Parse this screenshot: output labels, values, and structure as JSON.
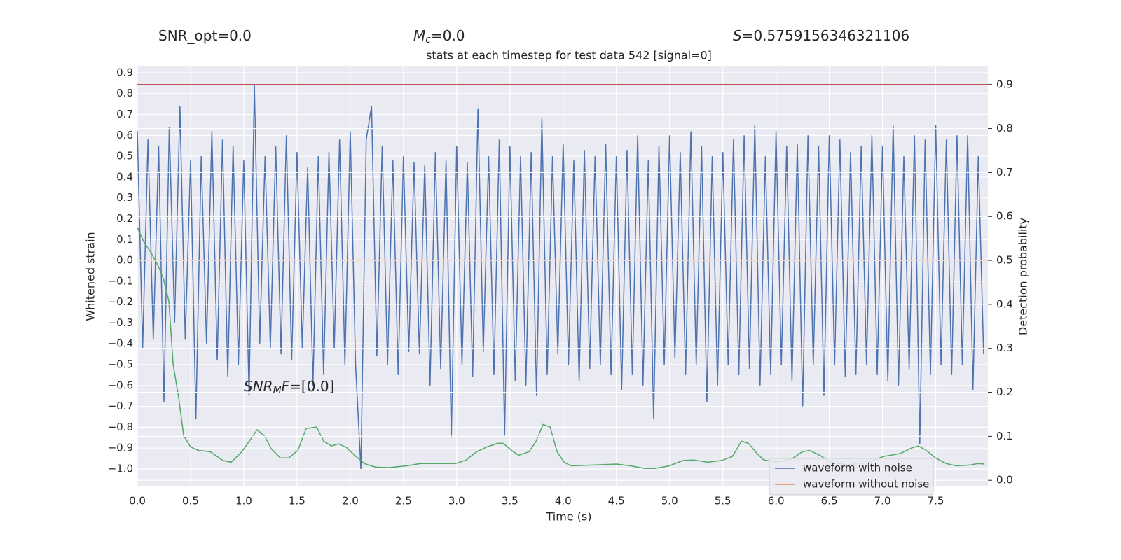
{
  "chart_data": {
    "type": "line",
    "title": "stats at each timestep for test data 542 [signal=0]",
    "header": [
      [
        {
          "text": "SNR_opt=0.0"
        }
      ],
      [
        {
          "text": "M",
          "style": "italic"
        },
        {
          "text": "c",
          "style": "sub"
        },
        {
          "text": "=0.0"
        }
      ],
      [
        {
          "text": "S",
          "style": "italic"
        },
        {
          "text": "=0.5759156346321106"
        }
      ]
    ],
    "annotation": [
      {
        "text": "SNR",
        "style": "italic"
      },
      {
        "text": "M",
        "style": "sub"
      },
      {
        "text": "F",
        "style": "italic"
      },
      {
        "text": "=[0.0]"
      }
    ],
    "xlabel": "Time (s)",
    "ylabel": "Whitened strain",
    "y2label": "Detection probability",
    "xlim": [
      0,
      7.99
    ],
    "ylim": [
      -1.084,
      0.93
    ],
    "y2lim": [
      -0.014,
      0.941
    ],
    "xticks": [
      {
        "value": 0,
        "label": "0.0"
      },
      {
        "value": 0.5,
        "label": "0.5"
      },
      {
        "value": 1,
        "label": "1.0"
      },
      {
        "value": 1.5,
        "label": "1.5"
      },
      {
        "value": 2,
        "label": "2.0"
      },
      {
        "value": 2.5,
        "label": "2.5"
      },
      {
        "value": 3,
        "label": "3.0"
      },
      {
        "value": 3.5,
        "label": "3.5"
      },
      {
        "value": 4,
        "label": "4.0"
      },
      {
        "value": 4.5,
        "label": "4.5"
      },
      {
        "value": 5,
        "label": "5.0"
      },
      {
        "value": 5.5,
        "label": "5.5"
      },
      {
        "value": 6,
        "label": "6.0"
      },
      {
        "value": 6.5,
        "label": "6.5"
      },
      {
        "value": 7,
        "label": "7.0"
      },
      {
        "value": 7.5,
        "label": "7.5"
      }
    ],
    "yticks": [
      {
        "value": -1,
        "label": "−1.0"
      },
      {
        "value": -0.9,
        "label": "−0.9"
      },
      {
        "value": -0.8,
        "label": "−0.8"
      },
      {
        "value": -0.7,
        "label": "−0.7"
      },
      {
        "value": -0.6,
        "label": "−0.6"
      },
      {
        "value": -0.5,
        "label": "−0.5"
      },
      {
        "value": -0.4,
        "label": "−0.4"
      },
      {
        "value": -0.3,
        "label": "−0.3"
      },
      {
        "value": -0.2,
        "label": "−0.2"
      },
      {
        "value": -0.1,
        "label": "−0.1"
      },
      {
        "value": 0,
        "label": "0.0"
      },
      {
        "value": 0.1,
        "label": "0.1"
      },
      {
        "value": 0.2,
        "label": "0.2"
      },
      {
        "value": 0.3,
        "label": "0.3"
      },
      {
        "value": 0.4,
        "label": "0.4"
      },
      {
        "value": 0.5,
        "label": "0.5"
      },
      {
        "value": 0.6,
        "label": "0.6"
      },
      {
        "value": 0.7,
        "label": "0.7"
      },
      {
        "value": 0.8,
        "label": "0.8"
      },
      {
        "value": 0.9,
        "label": "0.9"
      }
    ],
    "y2ticks": [
      {
        "value": 0,
        "label": "0.0"
      },
      {
        "value": 0.1,
        "label": "0.1"
      },
      {
        "value": 0.2,
        "label": "0.2"
      },
      {
        "value": 0.3,
        "label": "0.3"
      },
      {
        "value": 0.4,
        "label": "0.4"
      },
      {
        "value": 0.5,
        "label": "0.5"
      },
      {
        "value": 0.6,
        "label": "0.6"
      },
      {
        "value": 0.7,
        "label": "0.7"
      },
      {
        "value": 0.8,
        "label": "0.8"
      },
      {
        "value": 0.9,
        "label": "0.9"
      }
    ],
    "grid": true,
    "legend": "lower right",
    "threshold": {
      "value": 0.9,
      "axis": "y2",
      "color": "#c44e52"
    },
    "series": [
      {
        "name": "waveform with noise",
        "color": "#4c72b0",
        "x": [
          0,
          0.05,
          0.1,
          0.15,
          0.2,
          0.25,
          0.3,
          0.35,
          0.4,
          0.45,
          0.5,
          0.55,
          0.6,
          0.65,
          0.7,
          0.75,
          0.8,
          0.85,
          0.9,
          0.95,
          1,
          1.05,
          1.1,
          1.15,
          1.2,
          1.25,
          1.3,
          1.35,
          1.4,
          1.45,
          1.5,
          1.55,
          1.6,
          1.65,
          1.7,
          1.75,
          1.8,
          1.85,
          1.9,
          1.95,
          2,
          2.05,
          2.1,
          2.15,
          2.2,
          2.25,
          2.3,
          2.35,
          2.4,
          2.45,
          2.5,
          2.55,
          2.6,
          2.65,
          2.7,
          2.75,
          2.8,
          2.85,
          2.9,
          2.95,
          3,
          3.05,
          3.1,
          3.15,
          3.2,
          3.25,
          3.3,
          3.35,
          3.4,
          3.45,
          3.5,
          3.55,
          3.6,
          3.65,
          3.7,
          3.75,
          3.8,
          3.85,
          3.9,
          3.95,
          4,
          4.05,
          4.1,
          4.15,
          4.2,
          4.25,
          4.3,
          4.35,
          4.4,
          4.45,
          4.5,
          4.55,
          4.6,
          4.65,
          4.7,
          4.75,
          4.8,
          4.85,
          4.9,
          4.95,
          5,
          5.05,
          5.1,
          5.15,
          5.2,
          5.25,
          5.3,
          5.35,
          5.4,
          5.45,
          5.5,
          5.55,
          5.6,
          5.65,
          5.7,
          5.75,
          5.8,
          5.85,
          5.9,
          5.95,
          6,
          6.05,
          6.1,
          6.15,
          6.2,
          6.25,
          6.3,
          6.35,
          6.4,
          6.45,
          6.5,
          6.55,
          6.6,
          6.65,
          6.7,
          6.75,
          6.8,
          6.85,
          6.9,
          6.95,
          7,
          7.05,
          7.1,
          7.15,
          7.2,
          7.25,
          7.3,
          7.35,
          7.4,
          7.45,
          7.5,
          7.55,
          7.6,
          7.65,
          7.7,
          7.75,
          7.8,
          7.85,
          7.9,
          7.95
        ],
        "values": [
          0.62,
          -0.42,
          0.58,
          -0.38,
          0.55,
          -0.68,
          0.64,
          -0.3,
          0.74,
          -0.38,
          0.48,
          -0.76,
          0.5,
          -0.4,
          0.62,
          -0.48,
          0.58,
          -0.56,
          0.55,
          -0.5,
          0.48,
          -0.65,
          0.84,
          -0.4,
          0.5,
          -0.42,
          0.55,
          -0.45,
          0.6,
          -0.48,
          0.52,
          -0.42,
          0.45,
          -0.6,
          0.5,
          -0.55,
          0.52,
          -0.42,
          0.58,
          -0.5,
          0.62,
          -0.5,
          -1.0,
          0.58,
          0.74,
          -0.46,
          0.55,
          -0.5,
          0.48,
          -0.55,
          0.5,
          -0.44,
          0.47,
          -0.45,
          0.46,
          -0.6,
          0.52,
          -0.52,
          0.48,
          -0.85,
          0.55,
          -0.5,
          0.47,
          -0.56,
          0.73,
          -0.44,
          0.5,
          -0.55,
          0.58,
          -0.84,
          0.55,
          -0.58,
          0.5,
          -0.6,
          0.52,
          -0.65,
          0.68,
          -0.55,
          0.5,
          -0.45,
          0.56,
          -0.5,
          0.48,
          -0.58,
          0.53,
          -0.52,
          0.5,
          -0.5,
          0.56,
          -0.55,
          0.5,
          -0.62,
          0.53,
          -0.55,
          0.6,
          -0.6,
          0.48,
          -0.76,
          0.55,
          -0.5,
          0.6,
          -0.47,
          0.52,
          -0.55,
          0.62,
          -0.5,
          0.55,
          -0.68,
          0.5,
          -0.6,
          0.52,
          -0.5,
          0.58,
          -0.55,
          0.6,
          -0.52,
          0.65,
          -0.6,
          0.5,
          -0.55,
          0.62,
          -0.5,
          0.55,
          -0.58,
          0.56,
          -0.7,
          0.6,
          -0.5,
          0.55,
          -0.65,
          0.6,
          -0.5,
          0.58,
          -0.56,
          0.52,
          -0.55,
          0.55,
          -0.5,
          0.6,
          -0.55,
          0.55,
          -0.58,
          0.65,
          -0.6,
          0.5,
          -0.52,
          0.6,
          -0.88,
          0.58,
          -0.55,
          0.65,
          -0.5,
          0.58,
          -0.55,
          0.6,
          -0.5,
          0.6,
          -0.62,
          0.5,
          -0.45
        ]
      },
      {
        "name": "waveform without noise",
        "color": "#dd8452",
        "x": [
          0,
          7.99
        ],
        "values": [
          0,
          0
        ]
      },
      {
        "color": "#55a868",
        "axis": "y2",
        "x": [
          0,
          0.059,
          0.132,
          0.197,
          0.244,
          0.296,
          0.336,
          0.388,
          0.435,
          0.5,
          0.573,
          0.685,
          0.803,
          0.882,
          0.981,
          1.06,
          1.126,
          1.198,
          1.257,
          1.343,
          1.422,
          1.508,
          1.587,
          1.685,
          1.751,
          1.824,
          1.889,
          1.962,
          2.041,
          2.133,
          2.238,
          2.37,
          2.528,
          2.66,
          2.824,
          2.989,
          3.088,
          3.187,
          3.285,
          3.384,
          3.437,
          3.516,
          3.581,
          3.68,
          3.746,
          3.812,
          3.878,
          3.943,
          4.009,
          4.075,
          4.305,
          4.503,
          4.635,
          4.766,
          4.865,
          4.997,
          5.128,
          5.227,
          5.359,
          5.49,
          5.589,
          5.675,
          5.741,
          5.82,
          5.886,
          6.017,
          6.149,
          6.248,
          6.313,
          6.412,
          6.511,
          6.676,
          6.873,
          7.005,
          7.169,
          7.268,
          7.334,
          7.4,
          7.498,
          7.597,
          7.696,
          7.828,
          7.893,
          7.959
        ],
        "values": [
          0.575,
          0.543,
          0.516,
          0.487,
          0.459,
          0.408,
          0.264,
          0.188,
          0.102,
          0.076,
          0.068,
          0.065,
          0.045,
          0.041,
          0.065,
          0.092,
          0.115,
          0.1,
          0.072,
          0.051,
          0.051,
          0.068,
          0.118,
          0.121,
          0.089,
          0.078,
          0.083,
          0.075,
          0.057,
          0.038,
          0.03,
          0.029,
          0.033,
          0.038,
          0.038,
          0.038,
          0.046,
          0.065,
          0.076,
          0.084,
          0.084,
          0.068,
          0.057,
          0.065,
          0.089,
          0.127,
          0.121,
          0.065,
          0.041,
          0.033,
          0.035,
          0.037,
          0.033,
          0.027,
          0.027,
          0.033,
          0.045,
          0.046,
          0.041,
          0.045,
          0.054,
          0.089,
          0.084,
          0.061,
          0.046,
          0.041,
          0.049,
          0.065,
          0.068,
          0.057,
          0.041,
          0.035,
          0.041,
          0.054,
          0.061,
          0.073,
          0.078,
          0.07,
          0.051,
          0.038,
          0.033,
          0.035,
          0.038,
          0.037
        ]
      }
    ]
  }
}
